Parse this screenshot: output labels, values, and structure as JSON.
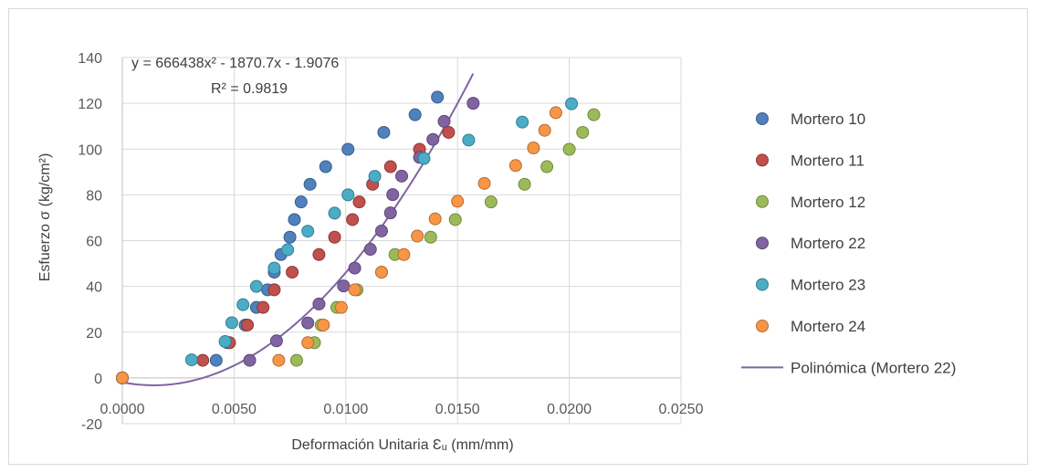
{
  "chart_data": {
    "type": "scatter",
    "title": "",
    "xlabel": "Deformación Unitaria Ɛᵤ (mm/mm)",
    "ylabel": "Esfuerzo σ (kg/cm²)",
    "xlim": [
      0,
      0.025
    ],
    "ylim": [
      -20,
      140
    ],
    "x_ticks": [
      "0.0000",
      "0.0050",
      "0.0100",
      "0.0150",
      "0.0200",
      "0.0250"
    ],
    "y_ticks": [
      "-20",
      "0",
      "20",
      "40",
      "60",
      "80",
      "100",
      "120",
      "140"
    ],
    "x_tick_values": [
      0,
      0.005,
      0.01,
      0.015,
      0.02,
      0.025
    ],
    "y_tick_values": [
      -20,
      0,
      20,
      40,
      60,
      80,
      100,
      120,
      140
    ],
    "grid": true,
    "legend_position": "right",
    "series": [
      {
        "name": "Mortero 10",
        "color": "#4f81bd",
        "edge": "#385d8a",
        "points": [
          [
            0,
            0
          ],
          [
            0.0042,
            7.7
          ],
          [
            0.0047,
            15.4
          ],
          [
            0.0055,
            23.1
          ],
          [
            0.006,
            30.8
          ],
          [
            0.0065,
            38.5
          ],
          [
            0.0068,
            46.2
          ],
          [
            0.0071,
            53.9
          ],
          [
            0.0075,
            61.5
          ],
          [
            0.0077,
            69.2
          ],
          [
            0.008,
            76.9
          ],
          [
            0.0084,
            84.6
          ],
          [
            0.0091,
            92.3
          ],
          [
            0.0101,
            99.9
          ],
          [
            0.0117,
            107.3
          ],
          [
            0.0131,
            115.0
          ],
          [
            0.0141,
            122.7
          ]
        ]
      },
      {
        "name": "Mortero 11",
        "color": "#c0504d",
        "edge": "#8c3836",
        "points": [
          [
            0,
            0
          ],
          [
            0.0036,
            7.7
          ],
          [
            0.0048,
            15.4
          ],
          [
            0.0056,
            23.1
          ],
          [
            0.0063,
            30.8
          ],
          [
            0.0068,
            38.5
          ],
          [
            0.0076,
            46.2
          ],
          [
            0.0088,
            53.9
          ],
          [
            0.0095,
            61.5
          ],
          [
            0.0103,
            69.2
          ],
          [
            0.0106,
            76.9
          ],
          [
            0.0112,
            84.6
          ],
          [
            0.012,
            92.3
          ],
          [
            0.0133,
            99.9
          ],
          [
            0.0146,
            107.3
          ]
        ]
      },
      {
        "name": "Mortero 12",
        "color": "#9bbb59",
        "edge": "#71893f",
        "points": [
          [
            0,
            0
          ],
          [
            0.0078,
            7.7
          ],
          [
            0.0086,
            15.4
          ],
          [
            0.0089,
            23.1
          ],
          [
            0.0096,
            30.8
          ],
          [
            0.0105,
            38.5
          ],
          [
            0.0116,
            46.2
          ],
          [
            0.0122,
            53.9
          ],
          [
            0.0138,
            61.5
          ],
          [
            0.0149,
            69.2
          ],
          [
            0.0165,
            76.9
          ],
          [
            0.018,
            84.6
          ],
          [
            0.019,
            92.3
          ],
          [
            0.02,
            99.9
          ],
          [
            0.0206,
            107.3
          ],
          [
            0.0211,
            115.0
          ]
        ]
      },
      {
        "name": "Mortero 22",
        "color": "#8064a2",
        "edge": "#5c4776",
        "points": [
          [
            0,
            0
          ],
          [
            0.0057,
            7.7
          ],
          [
            0.0069,
            16.2
          ],
          [
            0.0083,
            24.0
          ],
          [
            0.0088,
            32.3
          ],
          [
            0.0099,
            40.2
          ],
          [
            0.0104,
            48.0
          ],
          [
            0.0111,
            56.2
          ],
          [
            0.0116,
            64.2
          ],
          [
            0.012,
            72.1
          ],
          [
            0.0121,
            80.1
          ],
          [
            0.0125,
            88.2
          ],
          [
            0.0133,
            96.4
          ],
          [
            0.0139,
            104.2
          ],
          [
            0.0144,
            112.1
          ],
          [
            0.0157,
            120.0
          ]
        ]
      },
      {
        "name": "Mortero 23",
        "color": "#4bacc6",
        "edge": "#357d91",
        "points": [
          [
            0,
            0
          ],
          [
            0.0031,
            7.9
          ],
          [
            0.0046,
            15.9
          ],
          [
            0.0049,
            24.1
          ],
          [
            0.0054,
            32.0
          ],
          [
            0.006,
            40.0
          ],
          [
            0.0068,
            48.0
          ],
          [
            0.0074,
            56.0
          ],
          [
            0.0083,
            64.1
          ],
          [
            0.0095,
            72.0
          ],
          [
            0.0101,
            80.0
          ],
          [
            0.0113,
            88.1
          ],
          [
            0.0135,
            95.9
          ],
          [
            0.0155,
            103.9
          ],
          [
            0.0179,
            111.8
          ],
          [
            0.0201,
            119.8
          ]
        ]
      },
      {
        "name": "Mortero 24",
        "color": "#f79646",
        "edge": "#b66d31",
        "points": [
          [
            0,
            0
          ],
          [
            0.007,
            7.7
          ],
          [
            0.0083,
            15.4
          ],
          [
            0.009,
            23.1
          ],
          [
            0.0098,
            30.8
          ],
          [
            0.0104,
            38.5
          ],
          [
            0.0116,
            46.2
          ],
          [
            0.0126,
            53.9
          ],
          [
            0.0132,
            62.0
          ],
          [
            0.014,
            69.5
          ],
          [
            0.015,
            77.2
          ],
          [
            0.0162,
            85.0
          ],
          [
            0.0176,
            92.8
          ],
          [
            0.0184,
            100.5
          ],
          [
            0.0189,
            108.2
          ],
          [
            0.0194,
            115.9
          ]
        ]
      }
    ],
    "trendline": {
      "name": "Polinómica (Mortero 22)",
      "series": "Mortero 22",
      "color": "#8064a2",
      "coefficients": {
        "a": 666438,
        "b": -1870.7,
        "c": -1.9076
      },
      "x_range": [
        0,
        0.0157
      ],
      "equation": "y = 666438x² - 1870.7x - 1.9076",
      "r_squared": "R² = 0.9819"
    }
  }
}
